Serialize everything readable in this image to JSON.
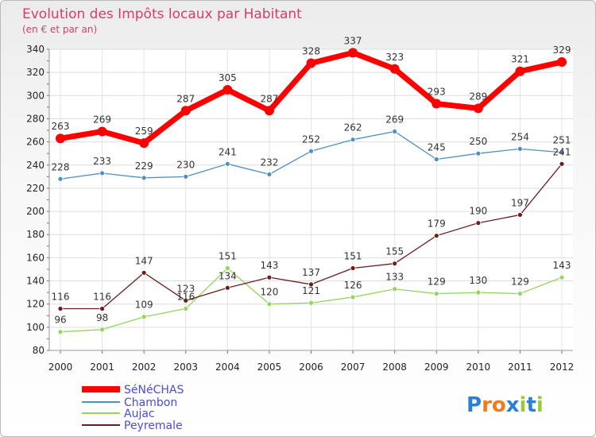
{
  "chart_data": {
    "type": "line",
    "title": "Evolution des Impôts locaux par Habitant",
    "subtitle": "(en € et par an)",
    "x": [
      "2000",
      "2001",
      "2002",
      "2003",
      "2004",
      "2005",
      "2006",
      "2007",
      "2008",
      "2009",
      "2010",
      "2011",
      "2012"
    ],
    "yticks": [
      80,
      100,
      120,
      140,
      160,
      180,
      200,
      220,
      240,
      260,
      280,
      300,
      320,
      340
    ],
    "ylim": [
      80,
      340
    ],
    "grid": true,
    "legend_position": "bottom-left",
    "series": [
      {
        "name": "SéNéCHAS",
        "color": "#ff0000",
        "values": [
          263,
          269,
          259,
          287,
          305,
          287,
          328,
          337,
          323,
          293,
          289,
          321,
          329
        ]
      },
      {
        "name": "Chambon",
        "color": "#4f8fc4",
        "values": [
          228,
          233,
          229,
          230,
          241,
          232,
          252,
          262,
          269,
          245,
          250,
          254,
          251
        ]
      },
      {
        "name": "Aujac",
        "color": "#93d65a",
        "values": [
          96,
          98,
          109,
          116,
          151,
          120,
          121,
          126,
          133,
          129,
          130,
          129,
          143
        ]
      },
      {
        "name": "Peyremale",
        "color": "#6b1d1d",
        "values": [
          116,
          116,
          147,
          123,
          134,
          143,
          137,
          151,
          155,
          179,
          190,
          197,
          241
        ]
      }
    ]
  },
  "logo": {
    "text": "Proxiti",
    "letters": [
      "P",
      "r",
      "o",
      "x",
      "i",
      "t",
      "i"
    ],
    "colors": [
      "#2c7fd6",
      "#f07c1b",
      "#f07c1b",
      "#2c7fd6",
      "#9ac93c",
      "#2c7fd6",
      "#9ac93c"
    ]
  }
}
